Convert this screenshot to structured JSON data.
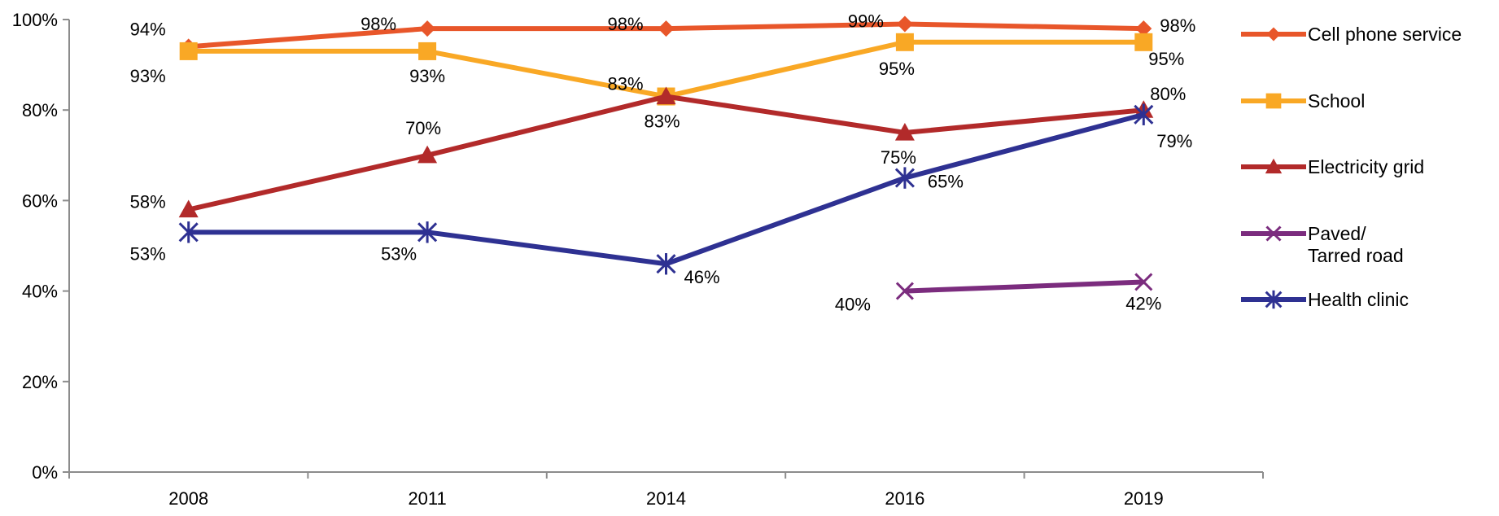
{
  "chart_data": {
    "type": "line",
    "categories": [
      "2008",
      "2011",
      "2014",
      "2016",
      "2019"
    ],
    "ylim": [
      0,
      100
    ],
    "yticks": [
      0,
      20,
      40,
      60,
      80,
      100
    ],
    "ytick_suffix": "%",
    "grid": false,
    "legend_position": "right",
    "series": [
      {
        "name": "Cell phone service",
        "color": "#E8562A",
        "marker": "diamond",
        "values": [
          94,
          98,
          98,
          99,
          98
        ]
      },
      {
        "name": "School",
        "color": "#F9A825",
        "marker": "square",
        "values": [
          93,
          93,
          83,
          95,
          95
        ]
      },
      {
        "name": "Electricity grid",
        "color": "#B22A2A",
        "marker": "triangle",
        "values": [
          58,
          70,
          83,
          75,
          80
        ]
      },
      {
        "name": "Paved/\nTarred road",
        "color": "#7B2C7E",
        "marker": "x",
        "values": [
          null,
          null,
          null,
          40,
          42
        ]
      },
      {
        "name": "Health clinic",
        "color": "#2E3192",
        "marker": "asterisk",
        "values": [
          53,
          53,
          46,
          65,
          79
        ]
      }
    ]
  }
}
